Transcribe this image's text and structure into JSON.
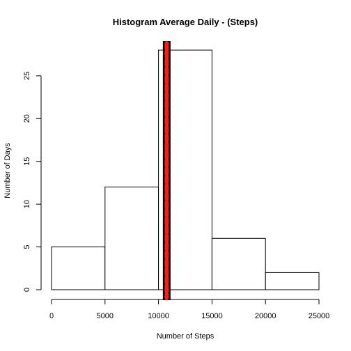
{
  "chart_data": {
    "type": "bar",
    "title": "Histogram Average Daily - (Steps)",
    "xlabel": "Number of Steps",
    "ylabel": "Number of Days",
    "bins": [
      {
        "start": 0,
        "end": 5000,
        "count": 5
      },
      {
        "start": 5000,
        "end": 10000,
        "count": 12
      },
      {
        "start": 10000,
        "end": 15000,
        "count": 28
      },
      {
        "start": 15000,
        "end": 20000,
        "count": 6
      },
      {
        "start": 20000,
        "end": 25000,
        "count": 2
      }
    ],
    "xlim": [
      0,
      25000
    ],
    "ylim": [
      0,
      28
    ],
    "x_ticks": [
      0,
      5000,
      10000,
      15000,
      20000,
      25000
    ],
    "y_ticks": [
      0,
      5,
      10,
      15,
      20,
      25
    ],
    "reference_lines": [
      {
        "type": "vertical",
        "x": 10766,
        "color": "#000000",
        "style": "solid"
      },
      {
        "type": "vertical",
        "x": 10766,
        "color": "#ff1a1a",
        "style": "dotted"
      }
    ],
    "grid": false,
    "legend": "none",
    "colors": {
      "bar_fill": "#ffffff",
      "bar_stroke": "#000000",
      "axis": "#000000"
    }
  }
}
